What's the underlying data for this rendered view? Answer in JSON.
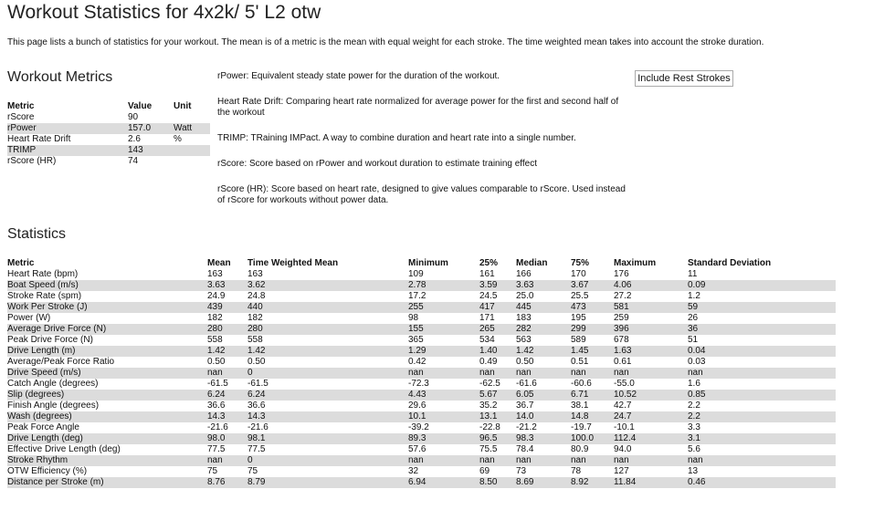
{
  "title": "Workout Statistics for 4x2k/ 5' L2 otw",
  "description": "This page lists a bunch of statistics for your workout. The mean is of a metric is the mean with equal weight for each stroke. The time weighted mean takes into account the stroke duration.",
  "metrics": {
    "heading": "Workout Metrics",
    "columns": [
      "Metric",
      "Value",
      "Unit"
    ],
    "rows": [
      [
        "rScore",
        "90",
        ""
      ],
      [
        "rPower",
        "157.0",
        "Watt"
      ],
      [
        "Heart Rate Drift",
        "2.6",
        "%"
      ],
      [
        "TRIMP",
        "143",
        ""
      ],
      [
        "rScore (HR)",
        "74",
        ""
      ]
    ]
  },
  "notes": [
    "rPower: Equivalent steady state power for the duration of the workout.",
    "Heart Rate Drift: Comparing heart rate normalized for average power for the first and second half of the workout",
    "TRIMP: TRaining IMPact. A way to combine duration and heart rate into a single number.",
    "rScore: Score based on rPower and workout duration to estimate training effect",
    "rScore (HR): Score based on heart rate, designed to give values comparable to rScore. Used instead of rScore for workouts without power data."
  ],
  "include_rest_button": "Include Rest Strokes",
  "stats": {
    "heading": "Statistics",
    "columns": [
      "Metric",
      "Mean",
      "Time Weighted Mean",
      "Minimum",
      "25%",
      "Median",
      "75%",
      "Maximum",
      "Standard Deviation"
    ],
    "rows": [
      [
        "Heart Rate (bpm)",
        "163",
        "163",
        "109",
        "161",
        "166",
        "170",
        "176",
        "11"
      ],
      [
        "Boat Speed (m/s)",
        "3.63",
        "3.62",
        "2.78",
        "3.59",
        "3.63",
        "3.67",
        "4.06",
        "0.09"
      ],
      [
        "Stroke Rate (spm)",
        "24.9",
        "24.8",
        "17.2",
        "24.5",
        "25.0",
        "25.5",
        "27.2",
        "1.2"
      ],
      [
        "Work Per Stroke (J)",
        "439",
        "440",
        "255",
        "417",
        "445",
        "473",
        "581",
        "59"
      ],
      [
        "Power (W)",
        "182",
        "182",
        "98",
        "171",
        "183",
        "195",
        "259",
        "26"
      ],
      [
        "Average Drive Force (N)",
        "280",
        "280",
        "155",
        "265",
        "282",
        "299",
        "396",
        "36"
      ],
      [
        "Peak Drive Force (N)",
        "558",
        "558",
        "365",
        "534",
        "563",
        "589",
        "678",
        "51"
      ],
      [
        "Drive Length (m)",
        "1.42",
        "1.42",
        "1.29",
        "1.40",
        "1.42",
        "1.45",
        "1.63",
        "0.04"
      ],
      [
        "Average/Peak Force Ratio",
        "0.50",
        "0.50",
        "0.42",
        "0.49",
        "0.50",
        "0.51",
        "0.61",
        "0.03"
      ],
      [
        "Drive Speed (m/s)",
        "nan",
        "0",
        "nan",
        "nan",
        "nan",
        "nan",
        "nan",
        "nan"
      ],
      [
        "Catch Angle (degrees)",
        "-61.5",
        "-61.5",
        "-72.3",
        "-62.5",
        "-61.6",
        "-60.6",
        "-55.0",
        "1.6"
      ],
      [
        "Slip (degrees)",
        "6.24",
        "6.24",
        "4.43",
        "5.67",
        "6.05",
        "6.71",
        "10.52",
        "0.85"
      ],
      [
        "Finish Angle (degrees)",
        "36.6",
        "36.6",
        "29.6",
        "35.2",
        "36.7",
        "38.1",
        "42.7",
        "2.2"
      ],
      [
        "Wash (degrees)",
        "14.3",
        "14.3",
        "10.1",
        "13.1",
        "14.0",
        "14.8",
        "24.7",
        "2.2"
      ],
      [
        "Peak Force Angle",
        "-21.6",
        "-21.6",
        "-39.2",
        "-22.8",
        "-21.2",
        "-19.7",
        "-10.1",
        "3.3"
      ],
      [
        "Drive Length (deg)",
        "98.0",
        "98.1",
        "89.3",
        "96.5",
        "98.3",
        "100.0",
        "112.4",
        "3.1"
      ],
      [
        "Effective Drive Length (deg)",
        "77.5",
        "77.5",
        "57.6",
        "75.5",
        "78.4",
        "80.9",
        "94.0",
        "5.6"
      ],
      [
        "Stroke Rhythm",
        "nan",
        "0",
        "nan",
        "nan",
        "nan",
        "nan",
        "nan",
        "nan"
      ],
      [
        "OTW Efficiency (%)",
        "75",
        "75",
        "32",
        "69",
        "73",
        "78",
        "127",
        "13"
      ],
      [
        "Distance per Stroke (m)",
        "8.76",
        "8.79",
        "6.94",
        "8.50",
        "8.69",
        "8.92",
        "11.84",
        "0.46"
      ]
    ]
  }
}
